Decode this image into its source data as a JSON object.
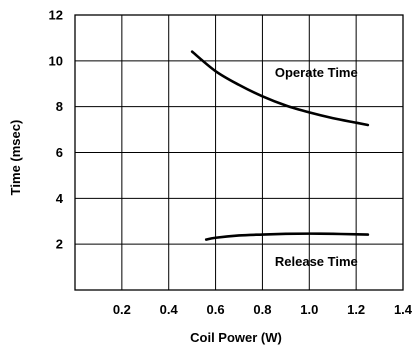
{
  "chart_data": {
    "type": "line",
    "title": "",
    "xlabel": "Coil Power (W)",
    "ylabel": "Time (msec)",
    "xlim": [
      0,
      1.4
    ],
    "ylim": [
      0,
      12
    ],
    "x_ticks": [
      0.2,
      0.4,
      0.6,
      0.8,
      1.0,
      1.2,
      1.4
    ],
    "x_tick_labels": [
      "0.2",
      "0.4",
      "0.6",
      "0.8",
      "1.0",
      "1.2",
      "1.4"
    ],
    "y_ticks": [
      2,
      4,
      6,
      8,
      10,
      12
    ],
    "y_tick_labels": [
      "2",
      "4",
      "6",
      "8",
      "10",
      "12"
    ],
    "grid": true,
    "legend": "none",
    "line_color": "#000000",
    "series": [
      {
        "name": "Operate Time",
        "x": [
          0.5,
          0.6,
          0.7,
          0.8,
          0.9,
          1.0,
          1.1,
          1.2,
          1.25
        ],
        "y": [
          10.4,
          9.55,
          8.95,
          8.45,
          8.05,
          7.75,
          7.5,
          7.3,
          7.2
        ]
      },
      {
        "name": "Release Time",
        "x": [
          0.56,
          0.6,
          0.7,
          0.8,
          0.9,
          1.0,
          1.1,
          1.2,
          1.25
        ],
        "y": [
          2.2,
          2.28,
          2.38,
          2.42,
          2.45,
          2.46,
          2.45,
          2.43,
          2.42
        ]
      }
    ],
    "series_label_positions": [
      {
        "series": "Operate Time",
        "x": 1.03,
        "y": 9.3
      },
      {
        "series": "Release Time",
        "x": 1.03,
        "y": 1.05
      }
    ]
  }
}
